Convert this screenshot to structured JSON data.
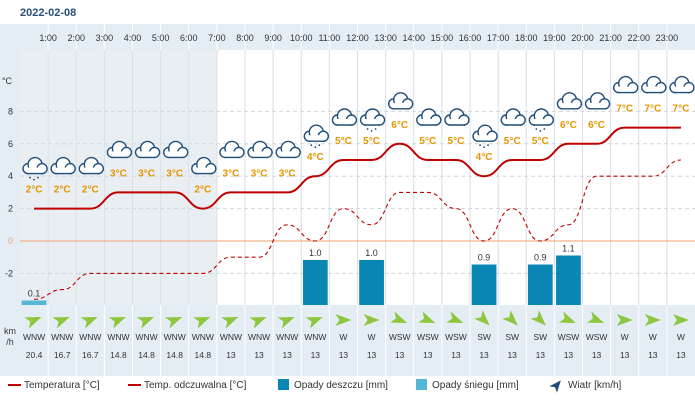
{
  "date_label": "2022-02-08",
  "chart_data": {
    "type": "line",
    "hours": [
      "1:00",
      "2:00",
      "3:00",
      "4:00",
      "5:00",
      "6:00",
      "7:00",
      "8:00",
      "9:00",
      "10:00",
      "11:00",
      "12:00",
      "13:00",
      "14:00",
      "15:00",
      "16:00",
      "17:00",
      "18:00",
      "19:00",
      "20:00",
      "21:00",
      "22:00",
      "23:00"
    ],
    "y_unit": "°C",
    "y_ticks": [
      -2,
      0,
      2,
      4,
      6,
      8
    ],
    "ylim": [
      -4,
      9
    ],
    "temp_labels": [
      "2°C",
      "2°C",
      "2°C",
      "3°C",
      "3°C",
      "3°C",
      "2°C",
      "3°C",
      "3°C",
      "3°C",
      "4°C",
      "5°C",
      "5°C",
      "6°C",
      "5°C",
      "5°C",
      "4°C",
      "5°C",
      "5°C",
      "6°C",
      "6°C",
      "7°C",
      "7°C",
      "7°C"
    ],
    "temperature": [
      2,
      2,
      2,
      3,
      3,
      3,
      2,
      3,
      3,
      3,
      4,
      5,
      5,
      6,
      5,
      5,
      4,
      5,
      5,
      6,
      6,
      7,
      7,
      7
    ],
    "feels_like": [
      -3.6,
      -3.0,
      -2,
      -2,
      -2,
      -2,
      -2,
      -1,
      -1,
      1,
      0,
      2,
      1,
      3,
      3,
      2,
      0,
      2,
      0,
      1,
      4,
      4,
      4,
      5
    ],
    "weather_icons": [
      "cloud-snow",
      "cloud",
      "cloud",
      "cloud",
      "cloud",
      "cloud",
      "cloud",
      "cloud",
      "cloud",
      "cloud",
      "cloud-rain",
      "cloud",
      "cloud-rain",
      "cloud",
      "cloud",
      "cloud",
      "cloud-rain",
      "cloud",
      "cloud-rain",
      "cloud",
      "cloud",
      "cloud",
      "cloud",
      "cloud"
    ],
    "rain": [
      0,
      0,
      0,
      0,
      0,
      0,
      0,
      0,
      0,
      0,
      1.0,
      0,
      1.0,
      0,
      0,
      0,
      0.9,
      0,
      0.9,
      1.1,
      0,
      0,
      0,
      0
    ],
    "snow": [
      0.1,
      0,
      0,
      0,
      0,
      0,
      0,
      0,
      0,
      0,
      0,
      0,
      0,
      0,
      0,
      0,
      0,
      0,
      0,
      0,
      0,
      0,
      0,
      0
    ],
    "wind_label": "km\n/h",
    "wind_dir": [
      "WNW",
      "WNW",
      "WNW",
      "WNW",
      "WNW",
      "WNW",
      "WNW",
      "WNW",
      "WNW",
      "WNW",
      "WNW",
      "W",
      "W",
      "WSW",
      "WSW",
      "WSW",
      "SW",
      "SW",
      "SW",
      "WSW",
      "WSW",
      "W",
      "W",
      "W"
    ],
    "wind_speed": [
      "20.4",
      "16.7",
      "16.7",
      "14.8",
      "14.8",
      "14.8",
      "14.8",
      "13",
      "13",
      "13",
      "13",
      "13",
      "13",
      "13",
      "13",
      "13",
      "13",
      "13",
      "13",
      "13",
      "13",
      "13",
      "13",
      "13"
    ],
    "colors": {
      "temperature": "#c00000",
      "feels_like": "#c00000",
      "rain": "#0a86b4",
      "snow": "#55b7d6",
      "wind_arrow": "#8dc63f",
      "night_band": "#e9eef2",
      "zero_line": "#f0a070",
      "temp_label": "#e69500"
    },
    "legend": [
      {
        "label": "Temperatura [°C]",
        "kind": "line"
      },
      {
        "label": "Temp. odczuwalna [°C]",
        "kind": "dashed"
      },
      {
        "label": "Opady deszczu [mm]",
        "kind": "rain"
      },
      {
        "label": "Opady śniegu [mm]",
        "kind": "snow"
      },
      {
        "label": "Wiatr [km/h]",
        "kind": "wind"
      }
    ]
  }
}
